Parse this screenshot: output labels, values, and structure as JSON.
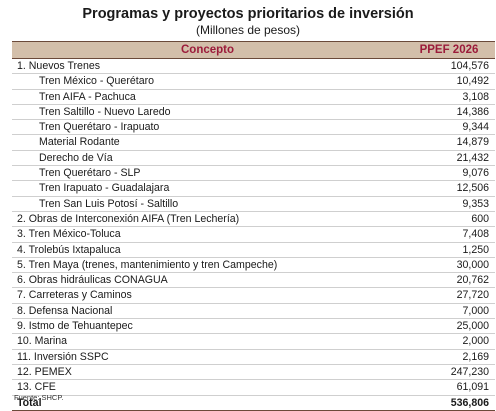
{
  "title": "Programas y proyectos prioritarios de inversión",
  "subtitle": "(Millones de pesos)",
  "header": {
    "concept": "Concepto",
    "value": "PPEF 2026"
  },
  "rows": [
    {
      "label": "1. Nuevos Trenes",
      "value": "104,576"
    },
    {
      "label": "Tren México - Querétaro",
      "value": "10,492"
    },
    {
      "label": "Tren AIFA - Pachuca",
      "value": "3,108"
    },
    {
      "label": "Tren Saltillo - Nuevo Laredo",
      "value": "14,386"
    },
    {
      "label": "Tren Querétaro - Irapuato",
      "value": "9,344"
    },
    {
      "label": "Material Rodante",
      "value": "14,879"
    },
    {
      "label": "Derecho de Vía",
      "value": "21,432"
    },
    {
      "label": "Tren Querétaro - SLP",
      "value": "9,076"
    },
    {
      "label": "Tren Irapuato - Guadalajara",
      "value": "12,506"
    },
    {
      "label": "Tren San Luis Potosí - Saltillo",
      "value": "9,353"
    },
    {
      "label": "2. Obras de Interconexión AIFA (Tren Lechería)",
      "value": "600"
    },
    {
      "label": "3. Tren México-Toluca",
      "value": "7,408"
    },
    {
      "label": "4. Trolebús Ixtapaluca",
      "value": "1,250"
    },
    {
      "label": "5. Tren Maya (trenes, mantenimiento y tren Campeche)",
      "value": "30,000"
    },
    {
      "label": "6. Obras hidráulicas CONAGUA",
      "value": "20,762"
    },
    {
      "label": "7. Carreteras y Caminos",
      "value": "27,720"
    },
    {
      "label": "8. Defensa Nacional",
      "value": "7,000"
    },
    {
      "label": "9. Istmo de Tehuantepec",
      "value": "25,000"
    },
    {
      "label": "10. Marina",
      "value": "2,000"
    },
    {
      "label": "11. Inversión SSPC",
      "value": "2,169"
    },
    {
      "label": "12. PEMEX",
      "value": "247,230"
    },
    {
      "label": "13. CFE",
      "value": "61,091"
    }
  ],
  "total": {
    "label": "Total",
    "value": "536,806"
  },
  "source": "Fuente: SHCP."
}
